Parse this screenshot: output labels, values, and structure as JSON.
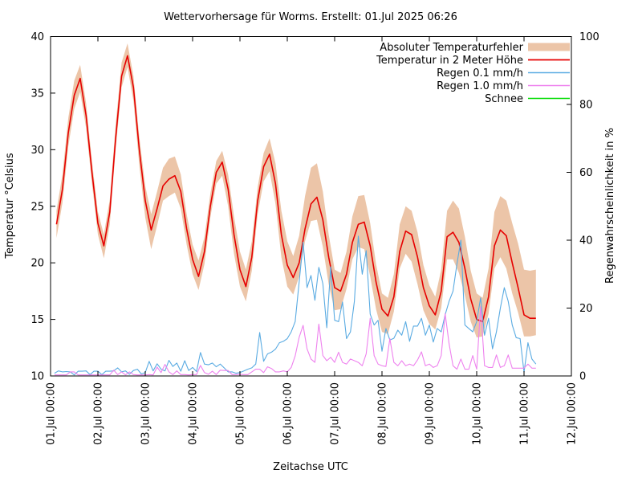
{
  "chart_data": {
    "type": "line",
    "title": "Wettervorhersage für Worms. Erstellt: 01.Jul 2025 06:26",
    "grid": false,
    "legend_position": "top-right-inside",
    "axes": {
      "x_label": "Zeitachse UTC",
      "y_left_label": "Temperatur °Celsius",
      "y_right_label": "Regenwahrscheinlichkeit in %",
      "x_ticks": [
        "01.Jul 00:00",
        "02.Jul 00:00",
        "03.Jul 00:00",
        "04.Jul 00:00",
        "05.Jul 00:00",
        "06.Jul 00:00",
        "07.Jul 00:00",
        "08.Jul 00:00",
        "09.Jul 00:00",
        "10.Jul 00:00",
        "11.Jul 00:00",
        "12.Jul 00:00"
      ],
      "y_left_ticks": [
        10,
        15,
        20,
        25,
        30,
        35,
        40
      ],
      "y_right_ticks": [
        0,
        20,
        40,
        60,
        80,
        100
      ],
      "y_left_range": [
        10,
        40
      ],
      "y_right_range": [
        0,
        100
      ],
      "x_range_days": 11
    },
    "legend": [
      {
        "label": "Absoluter Temperaturfehler",
        "color": "#ecc5a8",
        "type": "band"
      },
      {
        "label": "Temperatur in 2 Meter Höhe",
        "color": "#e60000",
        "type": "line"
      },
      {
        "label": "Regen 0.1 mm/h",
        "color": "#5aabe2",
        "type": "line"
      },
      {
        "label": "Regen 1.0 mm/h",
        "color": "#ee82ee",
        "type": "line"
      },
      {
        "label": "Schnee",
        "color": "#00dc00",
        "type": "line"
      }
    ],
    "x_unit": "hours since 01.Jul 2025 00:00 UTC",
    "series": {
      "temperature_2m_c": {
        "axis": "left",
        "start_hour": 3,
        "step_hours": 3,
        "values": [
          23.4,
          26.5,
          31.5,
          34.8,
          36.3,
          33.0,
          28.0,
          23.5,
          21.5,
          24.5,
          31.0,
          36.5,
          38.3,
          35.5,
          30.0,
          25.5,
          22.9,
          24.8,
          26.8,
          27.4,
          27.7,
          26.3,
          23.0,
          20.3,
          18.8,
          21.0,
          25.0,
          28.0,
          28.9,
          26.5,
          22.5,
          19.4,
          17.9,
          20.5,
          25.5,
          28.5,
          29.6,
          27.0,
          22.5,
          19.8,
          18.7,
          20.0,
          23.0,
          25.2,
          25.8,
          23.8,
          20.5,
          17.8,
          17.5,
          19.0,
          21.8,
          23.4,
          23.6,
          21.5,
          18.3,
          15.9,
          15.3,
          17.0,
          21.0,
          22.8,
          22.5,
          20.5,
          17.8,
          16.2,
          15.4,
          17.5,
          22.3,
          22.7,
          21.8,
          19.5,
          16.8,
          15.0,
          14.8,
          17.0,
          21.5,
          22.9,
          22.4,
          20.0,
          17.8,
          15.4,
          15.1,
          15.1
        ],
        "err_up": [
          1.2,
          1.3,
          1.3,
          1.3,
          1.2,
          1.1,
          1.0,
          1.0,
          1.0,
          1.1,
          1.2,
          1.2,
          1.1,
          1.0,
          1.1,
          1.3,
          1.4,
          1.5,
          1.6,
          1.8,
          1.7,
          1.5,
          1.3,
          1.3,
          1.4,
          1.3,
          1.1,
          1.0,
          1.0,
          1.3,
          1.6,
          1.6,
          1.5,
          1.4,
          1.2,
          1.2,
          1.4,
          1.8,
          2.1,
          2.1,
          1.9,
          2.4,
          2.9,
          3.2,
          3.0,
          2.5,
          2.0,
          1.6,
          1.6,
          2.0,
          2.3,
          2.5,
          2.4,
          2.0,
          1.6,
          1.4,
          1.6,
          2.0,
          2.4,
          2.2,
          2.1,
          2.2,
          2.0,
          1.8,
          1.6,
          1.9,
          2.3,
          2.8,
          3.0,
          2.8,
          2.5,
          2.3,
          2.1,
          2.5,
          3.0,
          3.0,
          3.1,
          3.5,
          3.9,
          4.0,
          4.2,
          4.3
        ],
        "err_dn": [
          1.2,
          1.2,
          1.2,
          1.2,
          1.2,
          1.1,
          1.0,
          1.0,
          1.1,
          1.1,
          1.0,
          1.0,
          1.0,
          1.2,
          1.4,
          1.5,
          1.7,
          1.5,
          1.3,
          1.5,
          1.5,
          1.5,
          1.4,
          1.3,
          1.2,
          1.1,
          1.0,
          1.0,
          1.2,
          1.5,
          1.7,
          1.5,
          1.3,
          1.2,
          1.2,
          1.3,
          1.5,
          1.8,
          2.0,
          1.9,
          1.5,
          1.2,
          1.1,
          1.5,
          2.0,
          2.4,
          2.4,
          2.0,
          1.6,
          1.3,
          1.5,
          2.0,
          2.4,
          2.7,
          2.4,
          2.0,
          1.6,
          1.3,
          1.5,
          2.0,
          2.4,
          2.4,
          2.0,
          1.6,
          1.3,
          1.5,
          2.0,
          2.4,
          2.7,
          2.4,
          2.0,
          1.6,
          1.3,
          1.5,
          2.0,
          2.4,
          2.9,
          2.7,
          2.2,
          1.9,
          1.6,
          1.5
        ]
      },
      "rain_01mmh_probability_pct": {
        "axis": "right",
        "start_hour": 2,
        "step_hours": 2,
        "values": [
          0.8,
          1.5,
          1.2,
          1.3,
          1.2,
          0.3,
          1.4,
          1.4,
          1.5,
          0.4,
          1.4,
          1.4,
          0.4,
          1.4,
          1.4,
          1.5,
          2.4,
          1.2,
          1.5,
          0.5,
          1.6,
          2.0,
          0.6,
          1.0,
          4.3,
          1.5,
          3.6,
          2.0,
          1.5,
          4.6,
          2.8,
          3.8,
          1.4,
          4.5,
          1.6,
          2.5,
          1.3,
          6.9,
          3.5,
          3.3,
          3.8,
          2.7,
          3.5,
          2.4,
          1.2,
          1.2,
          0.8,
          1.0,
          1.5,
          2.0,
          2.4,
          3.5,
          12.8,
          4.3,
          6.5,
          7.0,
          7.9,
          9.8,
          10.2,
          11.0,
          13.0,
          16.0,
          27.7,
          39.4,
          26.0,
          29.6,
          22.3,
          32.0,
          27.2,
          14.2,
          32.2,
          16.4,
          16.0,
          21.8,
          11.0,
          13.0,
          22.0,
          41.2,
          30.0,
          36.9,
          18.2,
          15.0,
          16.4,
          7.3,
          14.0,
          10.6,
          11.1,
          13.5,
          12.0,
          16.0,
          10.2,
          14.7,
          14.7,
          17.0,
          12.0,
          15.0,
          10.0,
          14.0,
          13.0,
          18.0,
          22.0,
          25.0,
          33.0,
          40.0,
          15.0,
          14.0,
          13.0,
          16.0,
          23.0,
          12.0,
          17.0,
          8.0,
          13.0,
          20.0,
          26.0,
          22.0,
          15.0,
          11.3,
          11.0,
          1.1,
          9.8,
          5.0,
          3.5
        ]
      },
      "rain_10mmh_probability_pct": {
        "axis": "right",
        "start_hour": 2,
        "step_hours": 2,
        "values": [
          0.3,
          0.3,
          0.3,
          0.3,
          1.2,
          1.2,
          0.3,
          0.3,
          0.3,
          0.3,
          0.3,
          0.3,
          0.3,
          0.3,
          0.3,
          1.7,
          0.4,
          1.2,
          0.3,
          1.2,
          0.4,
          0.3,
          0.3,
          0.3,
          0.4,
          0.3,
          2.6,
          1.0,
          3.4,
          1.2,
          0.4,
          1.5,
          0.4,
          0.4,
          0.3,
          0.4,
          0.4,
          3.1,
          1.0,
          0.5,
          1.4,
          0.4,
          1.7,
          1.6,
          1.6,
          0.4,
          0.4,
          0.5,
          0.4,
          0.4,
          1.2,
          2.0,
          2.0,
          1.0,
          2.7,
          2.2,
          1.2,
          1.2,
          1.5,
          1.2,
          2.5,
          5.9,
          11.4,
          14.9,
          8.0,
          5.0,
          4.0,
          15.3,
          6.0,
          4.5,
          5.5,
          4.0,
          7.0,
          4.0,
          3.5,
          5.0,
          4.5,
          4.0,
          3.0,
          6.5,
          17.0,
          6.0,
          3.5,
          3.0,
          2.8,
          11.0,
          4.0,
          3.0,
          4.5,
          3.0,
          3.5,
          3.0,
          4.7,
          7.1,
          3.0,
          3.5,
          2.5,
          3.0,
          6.0,
          18.4,
          9.5,
          3.0,
          2.0,
          5.0,
          2.0,
          2.0,
          6.0,
          2.0,
          20.4,
          3.0,
          2.5,
          2.5,
          6.2,
          2.5,
          3.0,
          6.2,
          2.3,
          2.3,
          2.3,
          2.3,
          3.5,
          2.3,
          2.3
        ]
      },
      "snow_probability_pct": {
        "axis": "right",
        "start_hour": 2,
        "step_hours": 2,
        "values": []
      }
    }
  }
}
